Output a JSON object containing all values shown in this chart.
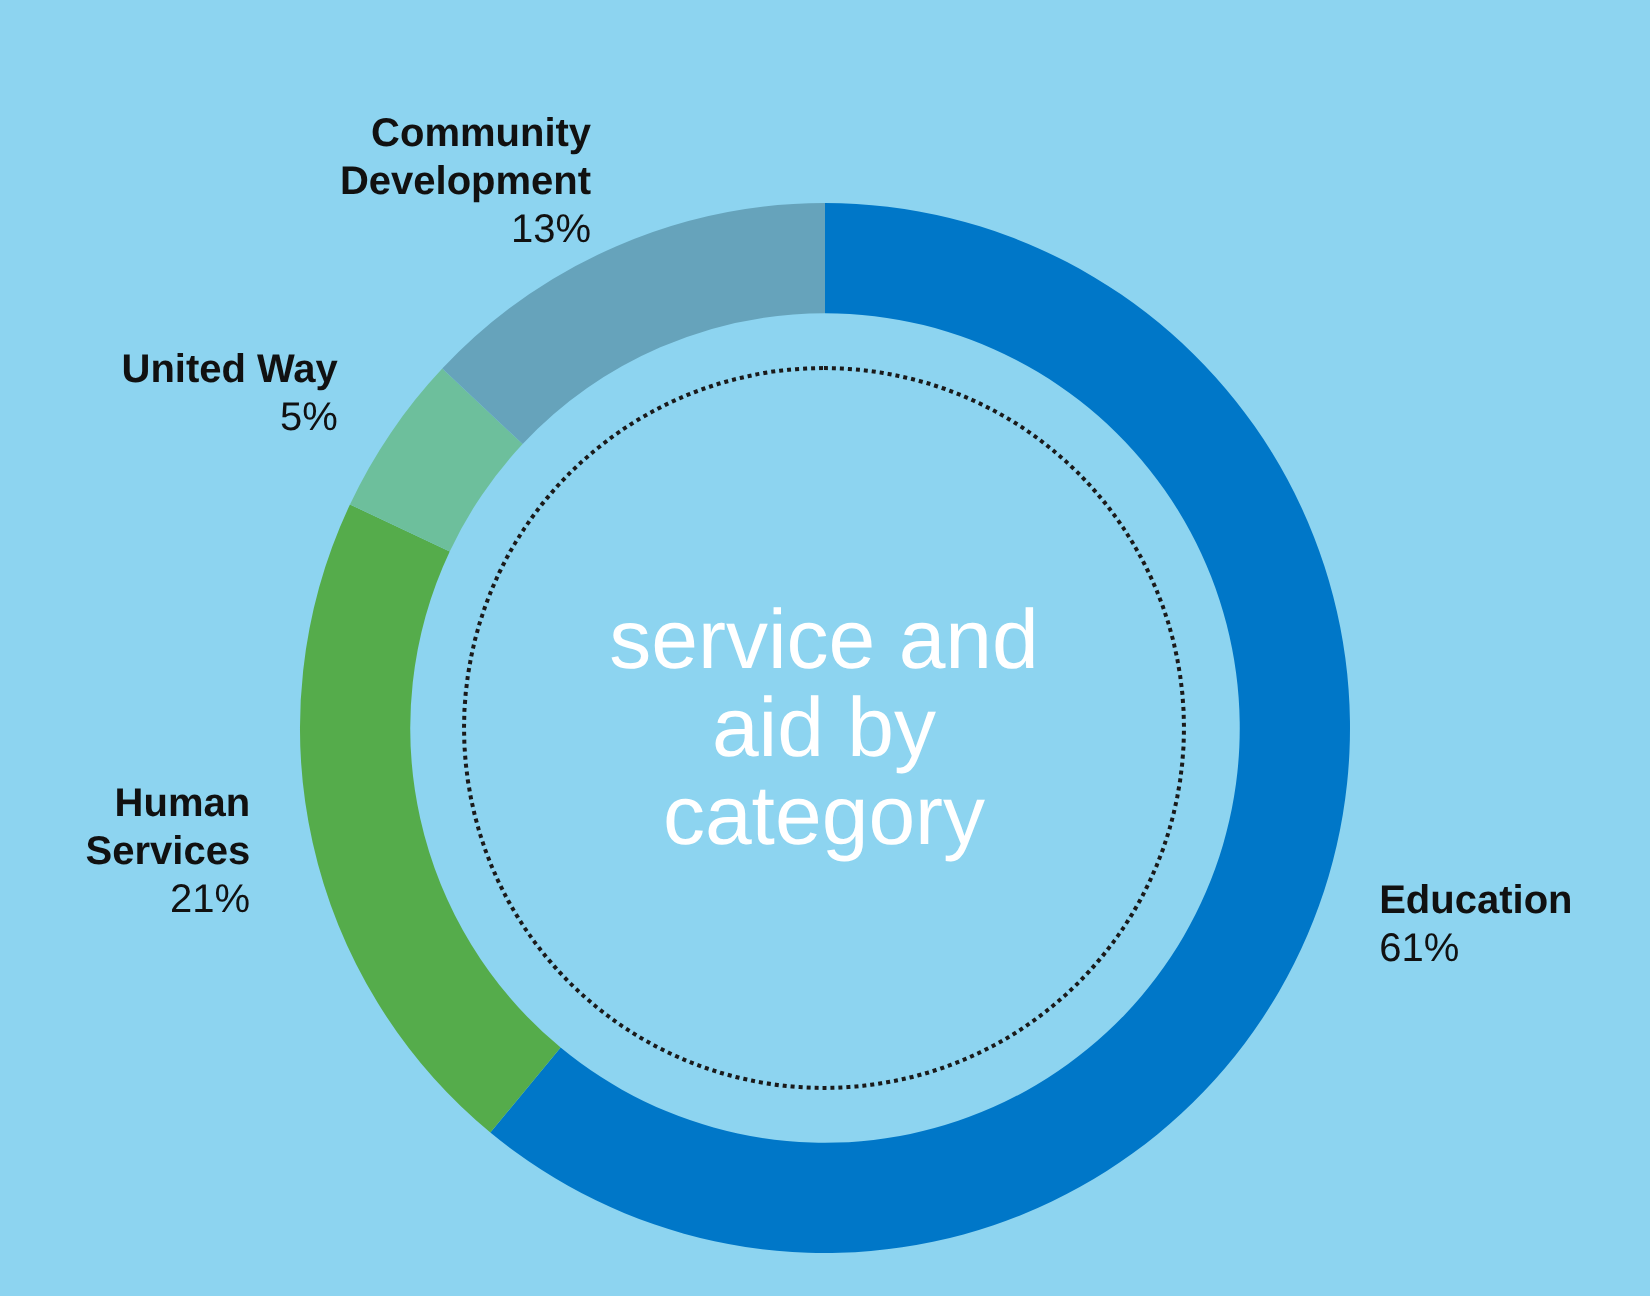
{
  "chart_data": {
    "type": "donut",
    "title": "service and aid by category",
    "categories": [
      "Education",
      "Human Services",
      "United Way",
      "Community Development"
    ],
    "values": [
      61,
      21,
      5,
      13
    ],
    "value_labels": [
      "61%",
      "21%",
      "5%",
      "13%"
    ],
    "colors": [
      "#0077c8",
      "#55ac4b",
      "#6dbf9c",
      "#66a3bb"
    ],
    "legend": false
  }
}
